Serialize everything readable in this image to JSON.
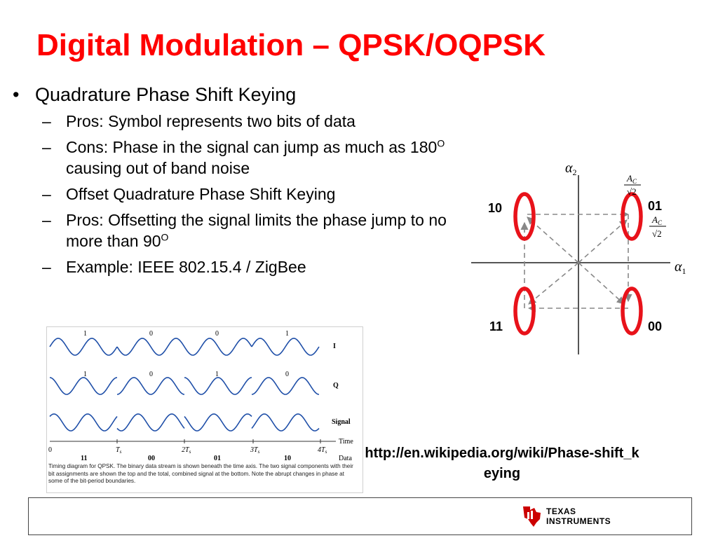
{
  "title": "Digital Modulation – QPSK/OQPSK",
  "bullet_symbol": "•",
  "dash_symbol": "–",
  "bullet": "Quadrature Phase Shift Keying",
  "subbullets": [
    "Pros:  Symbol represents two bits of data",
    "Cons: Phase in the signal can jump as much as 180",
    "causing out of band noise",
    "Offset Quadrature Phase Shift Keying",
    "Pros: Offsetting the signal limits the phase jump to no more than 90",
    "Example: IEEE 802.15.4 / ZigBee"
  ],
  "degree_mark": "O",
  "constellation": {
    "axis_y": "α",
    "axis_y_sub": "2",
    "axis_x": "α",
    "axis_x_sub": "1",
    "amplitude_num": "A",
    "amplitude_num_sub": "C",
    "amplitude_den": "√2",
    "labels": {
      "q10": "10",
      "q01": "01",
      "q11": "11",
      "q00": "00"
    },
    "ellipse_color": "#e8121a"
  },
  "timing": {
    "i_bits": [
      "1",
      "0",
      "0",
      "1"
    ],
    "q_bits": [
      "1",
      "0",
      "1",
      "0"
    ],
    "row_labels": {
      "i": "I",
      "q": "Q",
      "signal": "Signal",
      "time": "Time",
      "data": "Data"
    },
    "tick_labels": [
      "0",
      "T",
      "2T",
      "3T",
      "4T"
    ],
    "tick_sub": "s",
    "data_bits": [
      "11",
      "00",
      "01",
      "10"
    ],
    "caption": "Timing diagram for QPSK. The binary data stream is shown beneath the time axis. The two signal components with their bit assignments are shown the top and the total, combined signal at the bottom. Note the abrupt changes in phase at some of the bit-period boundaries.",
    "wave_color": "#1f4fa8"
  },
  "link": "http://en.wikipedia.org/wiki/Phase-shift_keying",
  "logo": {
    "line1": "TEXAS",
    "line2": "INSTRUMENTS",
    "color": "#cc0000"
  }
}
